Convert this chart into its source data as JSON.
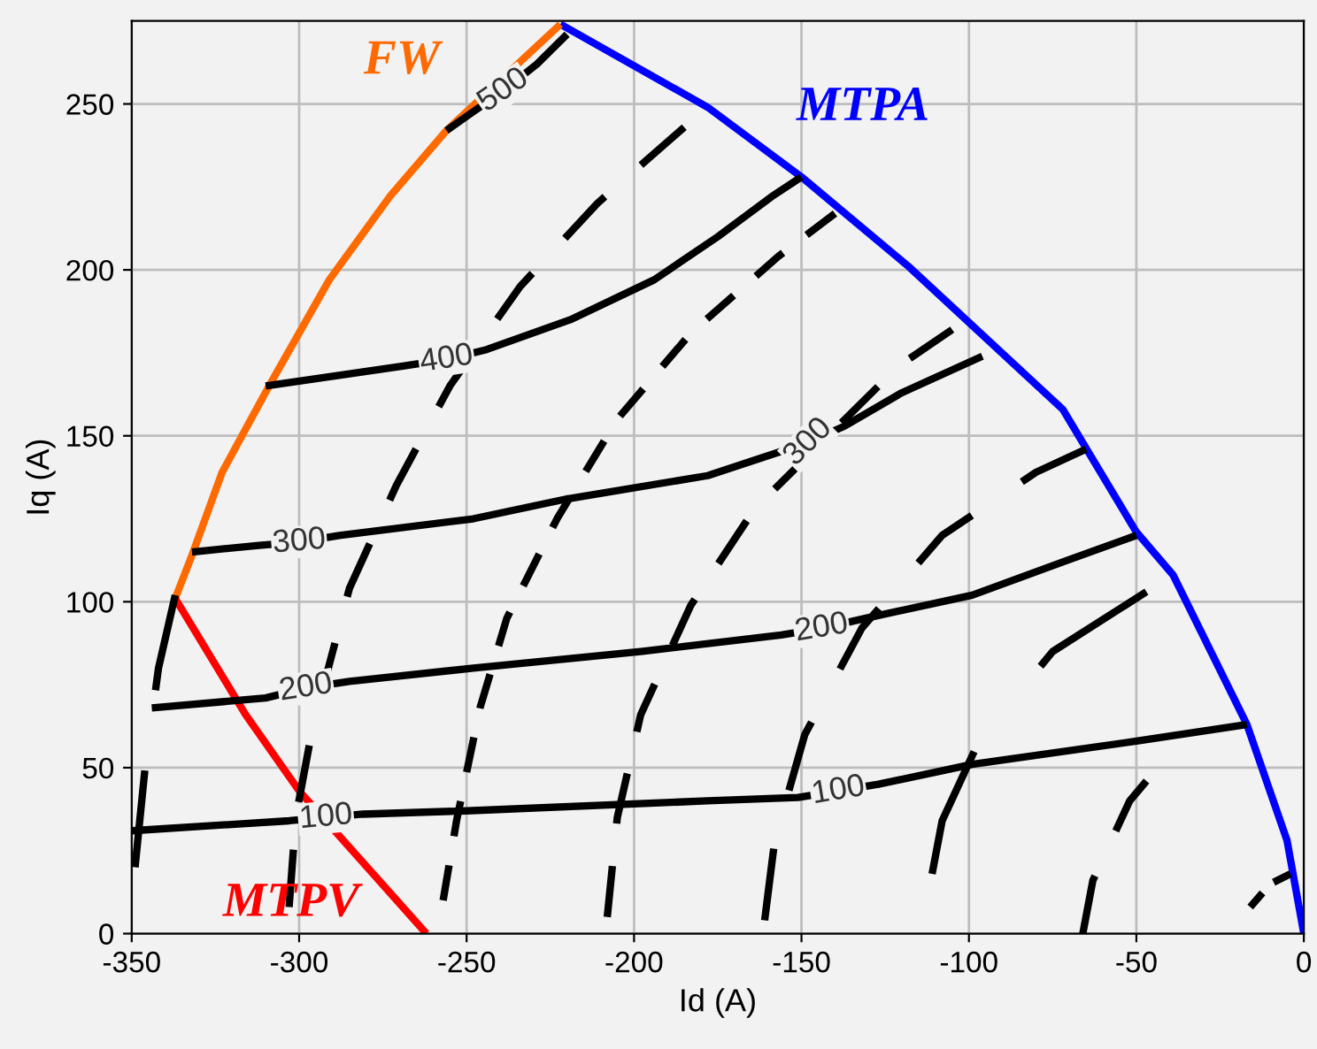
{
  "chart_data": {
    "type": "line",
    "xlabel": "Id (A)",
    "ylabel": "Iq (A)",
    "xlim": [
      -350,
      0
    ],
    "ylim": [
      0,
      275
    ],
    "xticks": [
      -350,
      -300,
      -250,
      -200,
      -150,
      -100,
      -50,
      0
    ],
    "yticks": [
      0,
      50,
      100,
      150,
      200,
      250
    ],
    "grid": true,
    "marker": "none",
    "legend": false,
    "series": [
      {
        "name": "MTPA",
        "color": "#0000ff",
        "line_style": "solid",
        "x": [
          -222,
          -178,
          -150,
          -118,
          -72,
          -50,
          -39,
          -17,
          -5,
          0
        ],
        "values": [
          274,
          249,
          228,
          201,
          158,
          121,
          108,
          63,
          28,
          0
        ]
      },
      {
        "name": "FW",
        "color": "#ff6a00",
        "line_style": "solid",
        "x": [
          -337,
          -332,
          -323,
          -309,
          -291,
          -273,
          -256,
          -222
        ],
        "values": [
          101,
          114,
          139,
          165,
          197,
          222,
          242,
          274
        ]
      },
      {
        "name": "MTPV",
        "color": "#ff0000",
        "line_style": "solid",
        "x": [
          -337,
          -316,
          -300,
          -262
        ],
        "values": [
          101,
          66,
          43,
          0
        ]
      },
      {
        "color": "#000000",
        "line_style": "solid",
        "x": [
          -350,
          -303,
          -292,
          -281,
          -250,
          -178,
          -151,
          -139,
          -127,
          -99,
          -50,
          -17
        ],
        "values": [
          31,
          34,
          35,
          36,
          37,
          40,
          41,
          43,
          45,
          51,
          58,
          63
        ]
      },
      {
        "color": "#000000",
        "line_style": "solid",
        "x": [
          -344,
          -310,
          -298,
          -285,
          -248,
          -198,
          -156,
          -144,
          -131,
          -99,
          -72,
          -50
        ],
        "values": [
          68,
          71,
          74,
          76,
          80,
          85,
          90,
          92,
          95,
          102,
          112,
          120
        ]
      },
      {
        "color": "#000000",
        "line_style": "solid",
        "x": [
          -332,
          -312,
          -300,
          -288,
          -248,
          -220,
          -178,
          -160,
          -148,
          -137,
          -120,
          -96
        ],
        "values": [
          115,
          117,
          118,
          120,
          125,
          131,
          138,
          144,
          148,
          153,
          163,
          174
        ]
      },
      {
        "color": "#000000",
        "line_style": "solid",
        "x": [
          -310,
          -269,
          -256,
          -244,
          -219,
          -194,
          -175,
          -159,
          -150
        ],
        "values": [
          165,
          171,
          173,
          176,
          185,
          197,
          210,
          222,
          228
        ]
      },
      {
        "color": "#000000",
        "line_style": "solid",
        "x": [
          -256,
          -249,
          -239,
          -229,
          -220
        ],
        "values": [
          242,
          247,
          254,
          262,
          271
        ]
      },
      {
        "color": "#000000",
        "line_style": "dashed",
        "x": [
          -349,
          -346,
          -342,
          -337
        ],
        "values": [
          20,
          50,
          80,
          102
        ]
      },
      {
        "color": "#000000",
        "line_style": "dashed",
        "x": [
          -303,
          -301,
          -296,
          -285,
          -271,
          -255,
          -234,
          -211,
          -185
        ],
        "values": [
          8,
          35,
          62,
          104,
          135,
          165,
          195,
          220,
          243
        ]
      },
      {
        "color": "#000000",
        "line_style": "dashed",
        "x": [
          -257,
          -253,
          -246,
          -238,
          -223,
          -205,
          -183,
          -157,
          -140
        ],
        "values": [
          10,
          34,
          68,
          95,
          125,
          155,
          181,
          204,
          217
        ]
      },
      {
        "color": "#000000",
        "line_style": "dashed",
        "x": [
          -208,
          -205,
          -198,
          -183,
          -164,
          -121,
          -105
        ],
        "values": [
          5,
          35,
          66,
          99,
          128,
          171,
          182
        ]
      },
      {
        "color": "#000000",
        "line_style": "dashed",
        "x": [
          -161,
          -158,
          -149,
          -132,
          -108,
          -80,
          -65
        ],
        "values": [
          4,
          28,
          60,
          92,
          120,
          139,
          146
        ]
      },
      {
        "color": "#000000",
        "line_style": "dashed",
        "x": [
          -111,
          -108,
          -97,
          -75,
          -47
        ],
        "values": [
          18,
          34,
          58,
          85,
          103
        ]
      },
      {
        "color": "#000000",
        "line_style": "dashed",
        "x": [
          -66,
          -63,
          -52,
          -47
        ],
        "values": [
          0,
          16,
          40,
          46
        ]
      },
      {
        "color": "#000000",
        "line_style": "dashed",
        "x": [
          -16,
          -10,
          -4
        ],
        "values": [
          8,
          15,
          18
        ]
      }
    ],
    "annotations": [
      {
        "text": "100",
        "x": -292,
        "y": 35
      },
      {
        "text": "100",
        "x": -139,
        "y": 43
      },
      {
        "text": "200",
        "x": -298,
        "y": 74
      },
      {
        "text": "200",
        "x": -144,
        "y": 92
      },
      {
        "text": "300",
        "x": -300,
        "y": 118
      },
      {
        "text": "300",
        "x": -148,
        "y": 148
      },
      {
        "text": "400",
        "x": -256,
        "y": 173
      },
      {
        "text": "500",
        "x": -239,
        "y": 254
      }
    ]
  }
}
